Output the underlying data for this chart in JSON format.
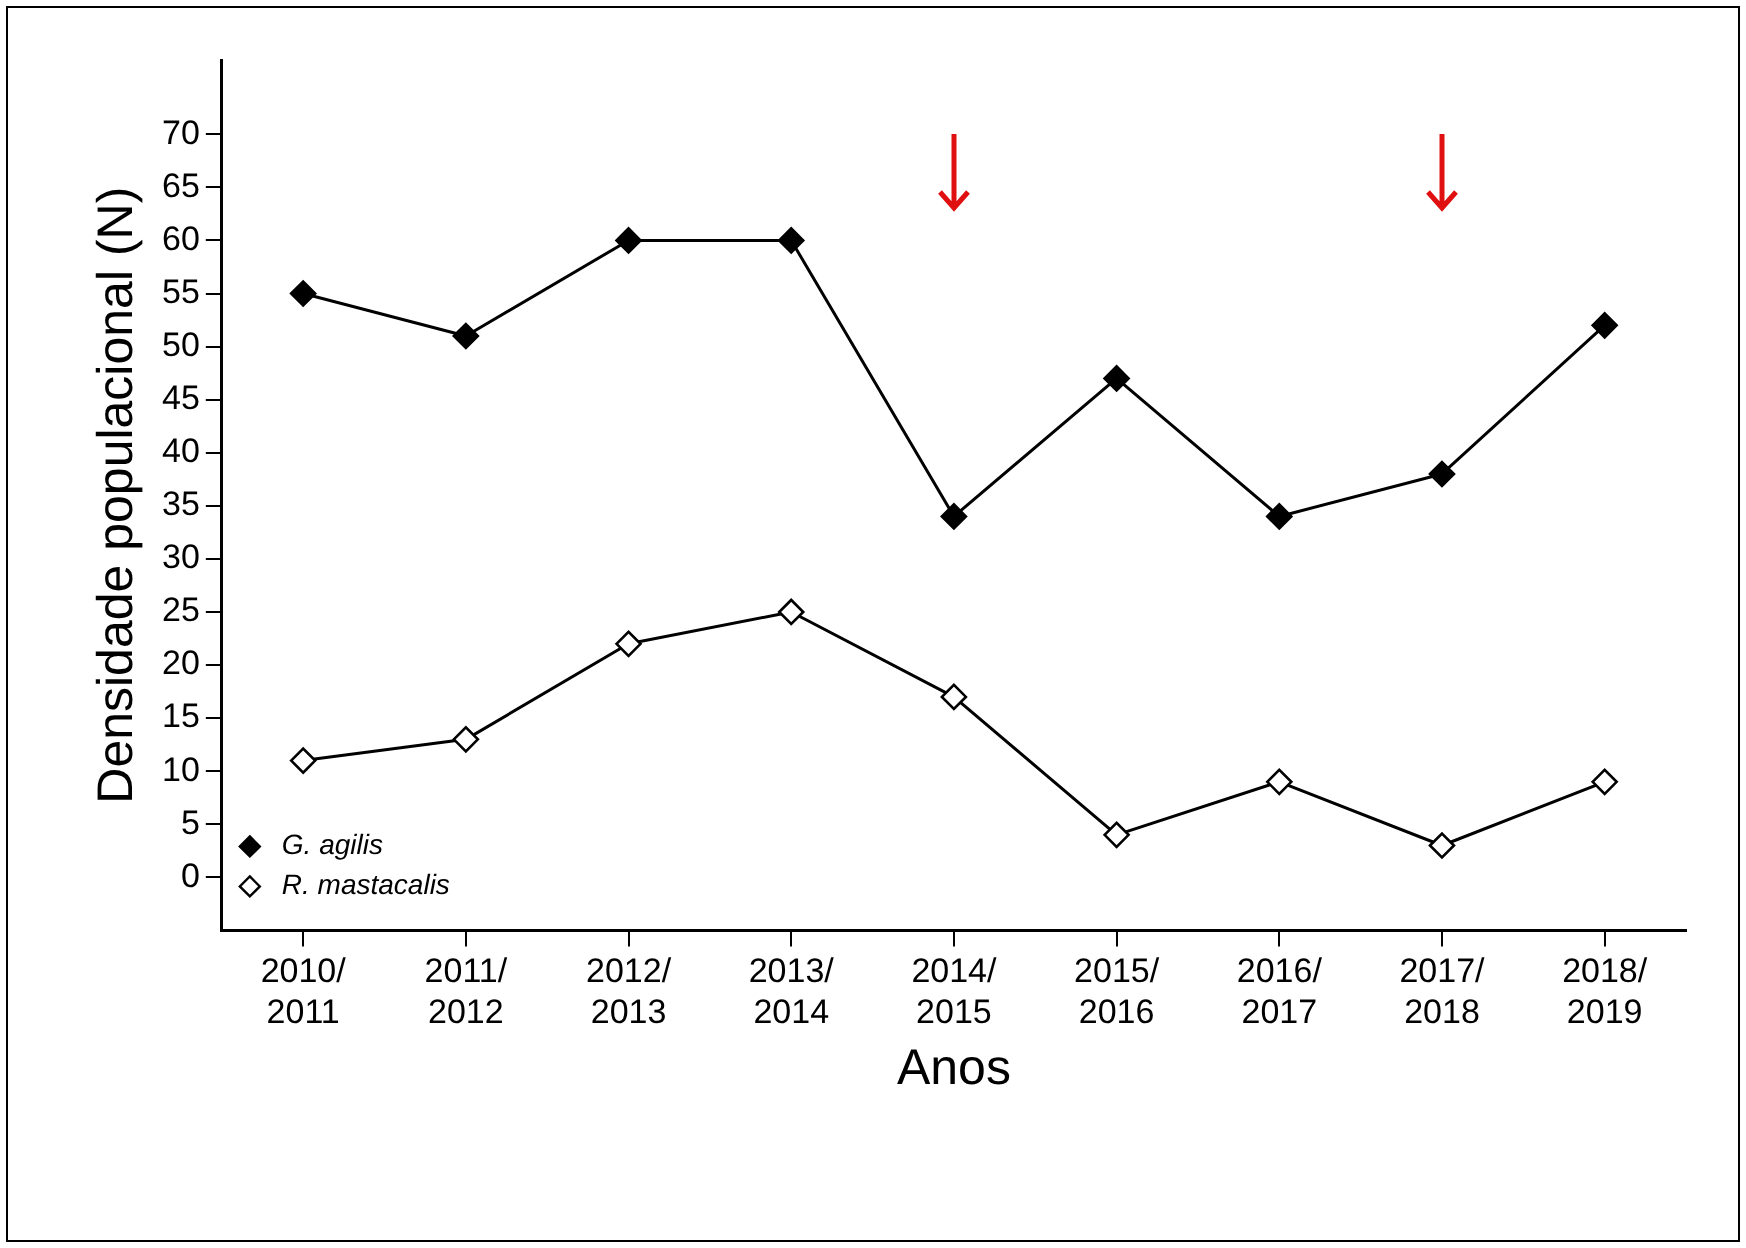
{
  "chart_data": {
    "type": "line",
    "xlabel": "Anos",
    "ylabel": "Densidade populacional (N)",
    "categories": [
      "2010/2011",
      "2011/2012",
      "2012/2013",
      "2013/2014",
      "2014/2015",
      "2015/2016",
      "2016/2017",
      "2017/2018",
      "2018/2019"
    ],
    "series": [
      {
        "name": "G. agilis",
        "color": "#000000",
        "values": [
          55,
          51,
          60,
          60,
          34,
          47,
          34,
          38,
          52
        ]
      },
      {
        "name": "R. mastacalis",
        "color": "#000000",
        "values": [
          11,
          13,
          22,
          25,
          17,
          4,
          9,
          3,
          9
        ]
      }
    ],
    "ylim": [
      -5,
      77
    ],
    "yticks": [
      0,
      5,
      10,
      15,
      20,
      25,
      30,
      35,
      40,
      45,
      50,
      55,
      60,
      65,
      70
    ],
    "grid": false,
    "legend": "bottom left",
    "marker": "diamond",
    "line_style": "solid"
  }
}
